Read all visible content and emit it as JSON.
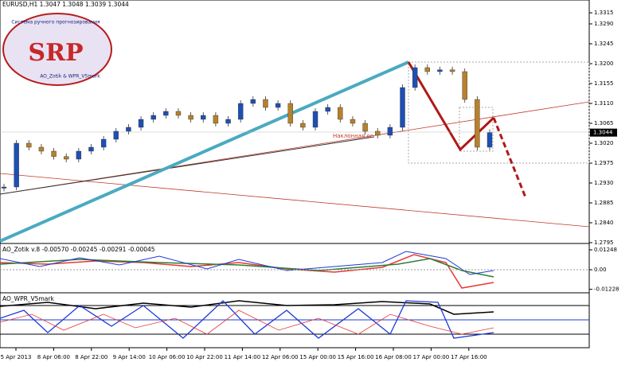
{
  "header": "EURUSD,H1  1.3047 1.3048 1.3039 1.3044",
  "logo": {
    "title": "SRP",
    "top_text": "Система ручного прогнозирования",
    "bottom_text": "AO_Zotik & WPR_V5mark"
  },
  "price_chart": {
    "yticks": [
      1.3315,
      {
        "value": 1.329,
        "label": "1.3290"
      },
      1.3245,
      {
        "value": 1.32,
        "label": "1.3200"
      },
      1.3155,
      {
        "value": 1.311,
        "label": "1.3110"
      },
      1.3065,
      {
        "value": 1.302,
        "label": "1.3020"
      },
      1.2975,
      {
        "value": 1.293,
        "label": "1.2930"
      },
      1.2885,
      {
        "value": 1.284,
        "label": "1.2840"
      },
      1.2795
    ],
    "current_price": 1.3044,
    "annotation": "Наклонная ос",
    "closes": [
      1.2921,
      1.302,
      1.3011,
      1.3002,
      1.299,
      1.2984,
      1.3002,
      1.3011,
      1.3029,
      1.3047,
      1.3056,
      1.3074,
      1.3083,
      1.3092,
      1.3083,
      1.3074,
      1.3083,
      1.3065,
      1.3074,
      1.311,
      1.3119,
      1.3101,
      1.311,
      1.3065,
      1.3056,
      1.3092,
      1.3101,
      1.3074,
      1.3065,
      1.3047,
      1.3038,
      1.3056,
      1.3146,
      1.3191,
      1.3182,
      1.3186,
      1.3182,
      1.3119,
      1.3011,
      1.3044
    ]
  },
  "indicator_1": {
    "title": "AO_Zotik v.8 -0.00570 -0.00245 -0.00291 -0.00045",
    "ticks": [
      0.01248,
      {
        "value": 0,
        "label": "0.00"
      },
      -0.01228
    ]
  },
  "indicator_2": {
    "title": "AO_WPR_V5mark"
  },
  "time_labels": [
    "5 Apr 2013",
    "8 Apr 06:00",
    "8 Apr 22:00",
    "9 Apr 14:00",
    "10 Apr 06:00",
    "10 Apr 22:00",
    "11 Apr 14:00",
    "12 Apr 06:00",
    "15 Apr 00:00",
    "15 Apr 16:00",
    "16 Apr 08:00",
    "17 Apr 00:00",
    "17 Apr 16:00"
  ]
}
